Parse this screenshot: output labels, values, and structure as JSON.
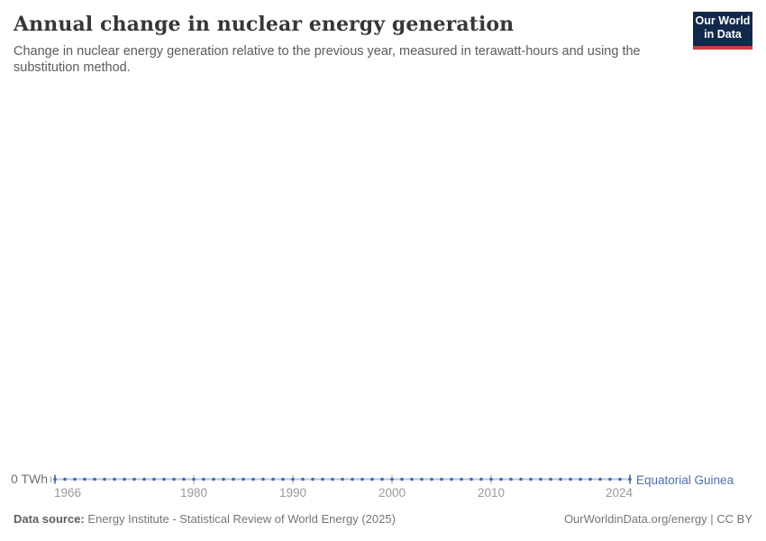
{
  "header": {
    "title": "Annual change in nuclear energy generation",
    "subtitle": "Change in nuclear energy generation relative to the previous year, measured in terawatt-hours and using the substitution method.",
    "logo": {
      "line1": "Our World",
      "line2": "in Data"
    }
  },
  "chart_data": {
    "type": "line",
    "title": "Annual change in nuclear energy generation",
    "unit": "TWh",
    "xlim": [
      1966,
      2024
    ],
    "ylim": [
      0,
      0
    ],
    "grid": false,
    "x_ticks": [
      1966,
      1980,
      1990,
      2000,
      2010,
      2024
    ],
    "y_axis_label": "0 TWh",
    "legend_position": "end-of-line",
    "series": [
      {
        "name": "Equatorial Guinea",
        "x_start": 1966,
        "x_end": 2024,
        "x_step": 1,
        "constant_value": 0
      }
    ],
    "colors": {
      "line": "#b0c6e4",
      "point": "#4166a5",
      "end_cap": "#4166a5",
      "tick": "#a8a8a8",
      "entity_label": "#4d6ea9"
    }
  },
  "footer": {
    "source_label": "Data source:",
    "source_text": "Energy Institute - Statistical Review of World Energy (2025)",
    "attribution": "OurWorldinData.org/energy | CC BY"
  }
}
